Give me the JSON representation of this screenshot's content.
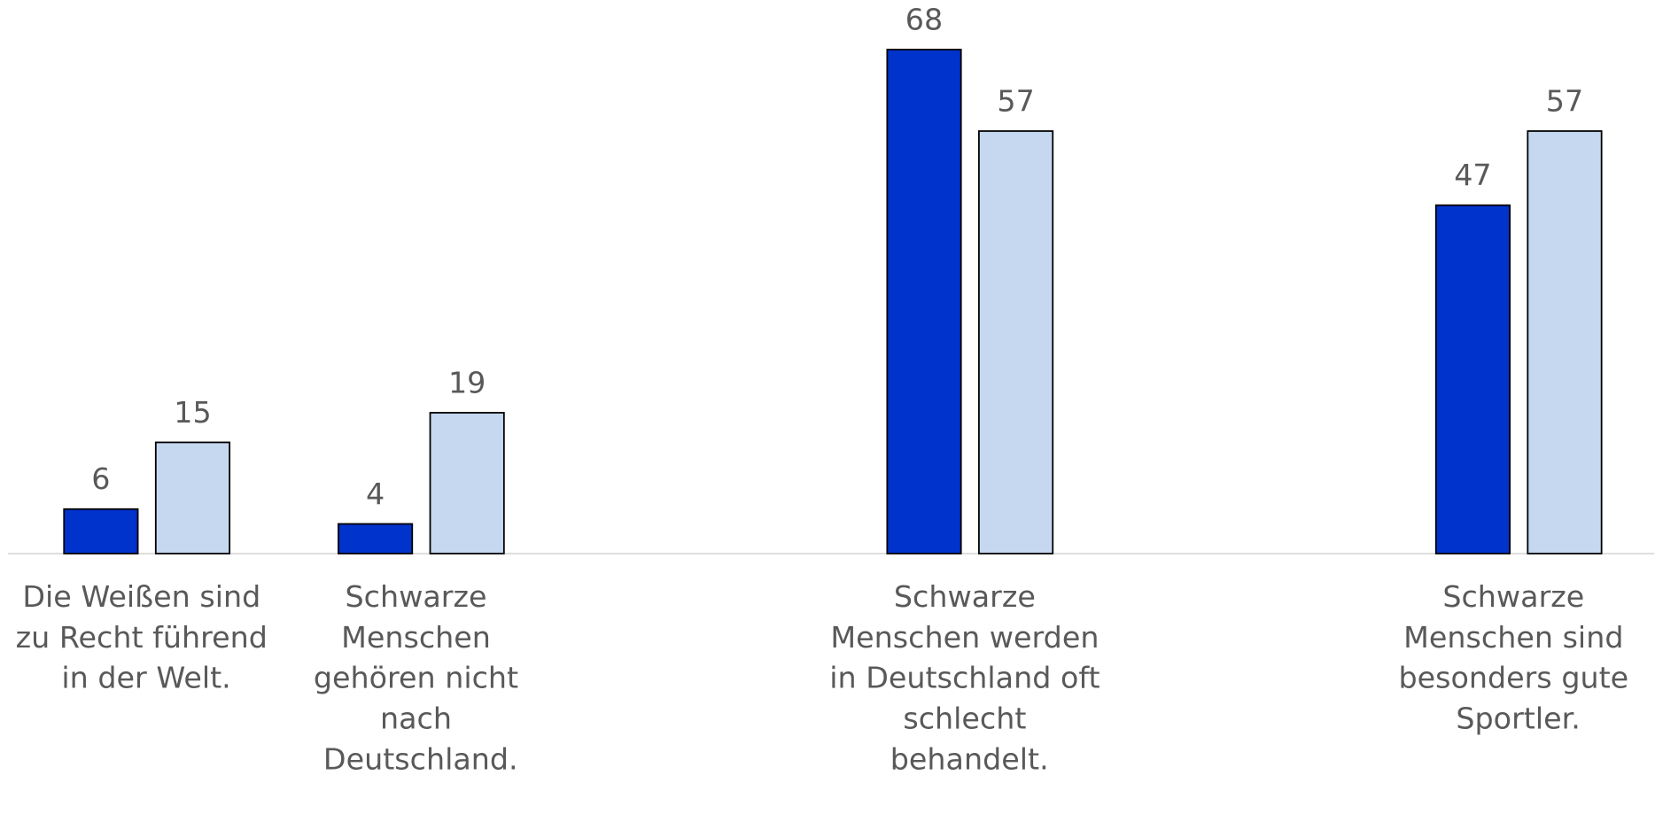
{
  "chart_data": {
    "type": "bar",
    "categories": [
      "Die Weißen sind zu Recht führend in der Welt.",
      "Schwarze Menschen gehören nicht nach Deutschland.",
      null,
      "Schwarze Menschen werden in Deutschland oft schlecht behandelt.",
      null,
      "Schwarze Menschen sind besonders gute Sportler."
    ],
    "series": [
      {
        "color": "#0033cc",
        "values": [
          6,
          4,
          null,
          68,
          null,
          47
        ]
      },
      {
        "color": "#c5d8f0",
        "values": [
          15,
          19,
          null,
          57,
          null,
          57
        ]
      }
    ],
    "ylim": [
      0,
      68
    ]
  }
}
